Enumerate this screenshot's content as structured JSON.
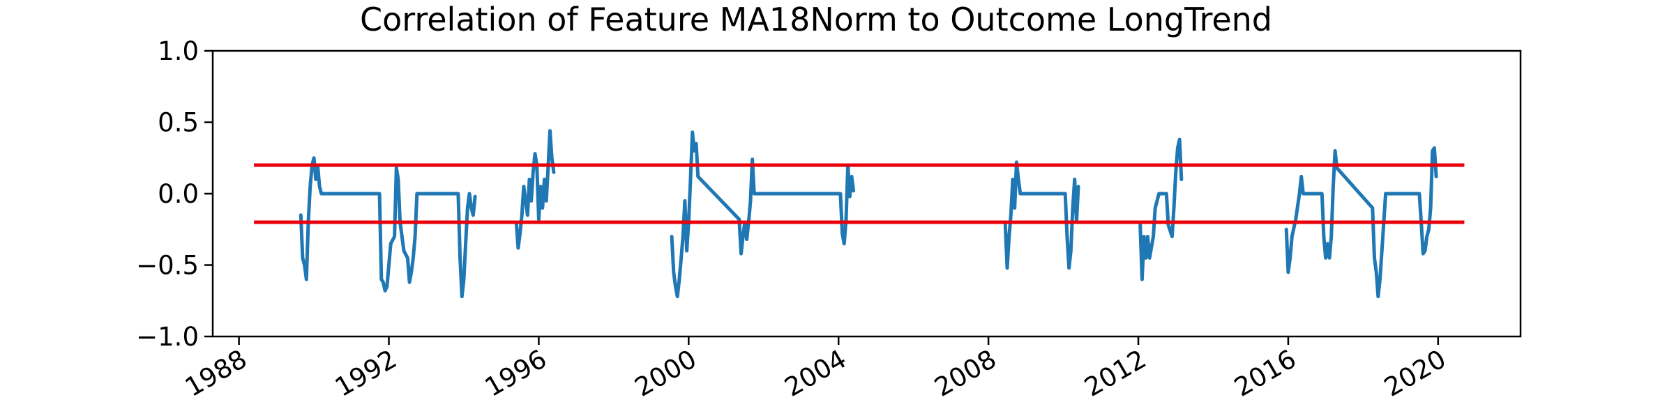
{
  "chart_data": {
    "type": "line",
    "title": "Correlation of Feature MA18Norm to Outcome LongTrend",
    "xlabel": "",
    "ylabel": "",
    "xlim": [
      1987.3,
      2022.2
    ],
    "ylim": [
      -1.0,
      1.0
    ],
    "x_ticks": [
      1988,
      1992,
      1996,
      2000,
      2004,
      2008,
      2012,
      2016,
      2020
    ],
    "x_tick_labels": [
      "1988",
      "1992",
      "1996",
      "2000",
      "2004",
      "2008",
      "2012",
      "2016",
      "2020"
    ],
    "y_ticks": [
      1.0,
      0.5,
      0.0,
      -0.5,
      -1.0
    ],
    "y_tick_labels": [
      "1.0",
      "0.5",
      "0.0",
      "−0.5",
      "−1.0"
    ],
    "grid": false,
    "threshold_lines": [
      {
        "y": 0.2,
        "x_range": [
          1988.4,
          2020.7
        ],
        "color": "#e8000b"
      },
      {
        "y": -0.2,
        "x_range": [
          1988.4,
          2020.7
        ],
        "color": "#e8000b"
      }
    ],
    "series": [
      {
        "color": "#1f77b4",
        "segments": [
          [
            [
              1989.65,
              -0.15
            ],
            [
              1989.7,
              -0.45
            ],
            [
              1989.75,
              -0.5
            ],
            [
              1989.8,
              -0.6
            ],
            [
              1989.85,
              -0.2
            ],
            [
              1989.9,
              0.05
            ],
            [
              1989.95,
              0.2
            ],
            [
              1990.0,
              0.25
            ],
            [
              1990.05,
              0.1
            ],
            [
              1990.1,
              0.2
            ],
            [
              1990.15,
              0.05
            ],
            [
              1990.2,
              0.0
            ],
            [
              1991.75,
              0.0
            ],
            [
              1991.8,
              -0.6
            ],
            [
              1991.85,
              -0.62
            ],
            [
              1991.9,
              -0.68
            ],
            [
              1991.95,
              -0.65
            ],
            [
              1992.05,
              -0.35
            ],
            [
              1992.15,
              -0.3
            ],
            [
              1992.2,
              0.18
            ],
            [
              1992.25,
              0.1
            ],
            [
              1992.3,
              -0.2
            ],
            [
              1992.4,
              -0.4
            ],
            [
              1992.5,
              -0.45
            ],
            [
              1992.55,
              -0.62
            ],
            [
              1992.6,
              -0.55
            ],
            [
              1992.65,
              -0.45
            ],
            [
              1992.7,
              -0.3
            ],
            [
              1992.75,
              0.0
            ],
            [
              1993.85,
              0.0
            ],
            [
              1993.9,
              -0.45
            ],
            [
              1993.95,
              -0.72
            ],
            [
              1994.0,
              -0.6
            ],
            [
              1994.05,
              -0.35
            ],
            [
              1994.1,
              -0.1
            ],
            [
              1994.15,
              0.0
            ],
            [
              1994.2,
              -0.1
            ],
            [
              1994.25,
              -0.15
            ],
            [
              1994.3,
              -0.02
            ]
          ],
          [
            [
              1995.4,
              -0.2
            ],
            [
              1995.45,
              -0.38
            ],
            [
              1995.5,
              -0.28
            ],
            [
              1995.55,
              -0.15
            ],
            [
              1995.6,
              0.05
            ],
            [
              1995.65,
              -0.05
            ],
            [
              1995.7,
              -0.15
            ],
            [
              1995.75,
              0.1
            ],
            [
              1995.8,
              -0.05
            ],
            [
              1995.85,
              0.15
            ],
            [
              1995.9,
              0.28
            ],
            [
              1995.95,
              0.2
            ],
            [
              1996.0,
              -0.18
            ],
            [
              1996.05,
              0.05
            ],
            [
              1996.1,
              -0.1
            ],
            [
              1996.15,
              0.1
            ],
            [
              1996.2,
              -0.05
            ],
            [
              1996.25,
              0.18
            ],
            [
              1996.3,
              0.44
            ],
            [
              1996.35,
              0.25
            ],
            [
              1996.4,
              0.15
            ]
          ],
          [
            [
              1999.55,
              -0.3
            ],
            [
              1999.6,
              -0.55
            ],
            [
              1999.65,
              -0.65
            ],
            [
              1999.7,
              -0.72
            ],
            [
              1999.75,
              -0.6
            ],
            [
              1999.8,
              -0.45
            ],
            [
              1999.85,
              -0.3
            ],
            [
              1999.9,
              -0.05
            ],
            [
              1999.95,
              -0.4
            ],
            [
              2000.0,
              -0.2
            ],
            [
              2000.05,
              0.1
            ],
            [
              2000.1,
              0.43
            ],
            [
              2000.15,
              0.3
            ],
            [
              2000.2,
              0.35
            ],
            [
              2000.25,
              0.12
            ],
            [
              2001.35,
              -0.18
            ],
            [
              2001.4,
              -0.42
            ],
            [
              2001.45,
              -0.3
            ],
            [
              2001.5,
              -0.2
            ],
            [
              2001.55,
              -0.32
            ],
            [
              2001.6,
              -0.2
            ],
            [
              2001.65,
              -0.05
            ],
            [
              2001.7,
              0.24
            ],
            [
              2001.75,
              0.0
            ],
            [
              2004.05,
              0.0
            ],
            [
              2004.1,
              -0.28
            ],
            [
              2004.15,
              -0.35
            ],
            [
              2004.2,
              -0.18
            ],
            [
              2004.25,
              0.2
            ],
            [
              2004.3,
              -0.02
            ],
            [
              2004.35,
              0.12
            ],
            [
              2004.4,
              0.02
            ]
          ],
          [
            [
              2008.45,
              -0.22
            ],
            [
              2008.5,
              -0.52
            ],
            [
              2008.55,
              -0.3
            ],
            [
              2008.6,
              -0.15
            ],
            [
              2008.65,
              0.1
            ],
            [
              2008.7,
              -0.1
            ],
            [
              2008.75,
              0.22
            ],
            [
              2008.8,
              0.1
            ],
            [
              2008.85,
              0.0
            ],
            [
              2010.05,
              0.0
            ],
            [
              2010.1,
              -0.3
            ],
            [
              2010.15,
              -0.52
            ],
            [
              2010.2,
              -0.4
            ],
            [
              2010.25,
              -0.1
            ],
            [
              2010.3,
              0.1
            ],
            [
              2010.35,
              -0.2
            ],
            [
              2010.4,
              0.05
            ]
          ],
          [
            [
              2012.05,
              -0.22
            ],
            [
              2012.1,
              -0.6
            ],
            [
              2012.15,
              -0.3
            ],
            [
              2012.2,
              -0.45
            ],
            [
              2012.25,
              -0.3
            ],
            [
              2012.3,
              -0.45
            ],
            [
              2012.4,
              -0.3
            ],
            [
              2012.45,
              -0.1
            ],
            [
              2012.55,
              0.0
            ],
            [
              2012.75,
              0.0
            ],
            [
              2012.8,
              -0.22
            ],
            [
              2012.9,
              -0.3
            ],
            [
              2012.95,
              -0.1
            ],
            [
              2013.0,
              0.15
            ],
            [
              2013.05,
              0.32
            ],
            [
              2013.1,
              0.38
            ],
            [
              2013.15,
              0.1
            ]
          ],
          [
            [
              2015.95,
              -0.25
            ],
            [
              2016.0,
              -0.55
            ],
            [
              2016.05,
              -0.45
            ],
            [
              2016.1,
              -0.3
            ],
            [
              2016.2,
              -0.18
            ],
            [
              2016.3,
              0.0
            ],
            [
              2016.35,
              0.12
            ],
            [
              2016.4,
              0.0
            ],
            [
              2016.9,
              0.0
            ],
            [
              2016.95,
              -0.3
            ],
            [
              2017.0,
              -0.45
            ],
            [
              2017.05,
              -0.35
            ],
            [
              2017.1,
              -0.45
            ],
            [
              2017.15,
              -0.3
            ],
            [
              2017.2,
              0.05
            ],
            [
              2017.25,
              0.3
            ],
            [
              2017.3,
              0.18
            ],
            [
              2018.25,
              -0.1
            ],
            [
              2018.3,
              -0.45
            ],
            [
              2018.35,
              -0.55
            ],
            [
              2018.4,
              -0.72
            ],
            [
              2018.45,
              -0.6
            ],
            [
              2018.5,
              -0.4
            ],
            [
              2018.55,
              -0.2
            ],
            [
              2018.6,
              0.0
            ],
            [
              2019.5,
              0.0
            ],
            [
              2019.55,
              -0.2
            ],
            [
              2019.6,
              -0.42
            ],
            [
              2019.65,
              -0.4
            ],
            [
              2019.7,
              -0.3
            ],
            [
              2019.75,
              -0.25
            ],
            [
              2019.8,
              -0.1
            ],
            [
              2019.85,
              0.3
            ],
            [
              2019.9,
              0.32
            ],
            [
              2019.95,
              0.12
            ]
          ]
        ]
      }
    ]
  }
}
